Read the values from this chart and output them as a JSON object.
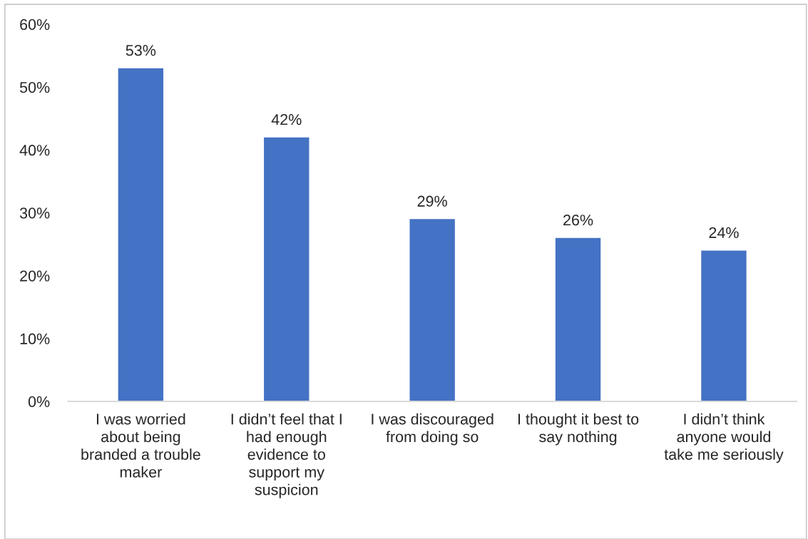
{
  "chart_data": {
    "type": "bar",
    "categories": [
      "I was worried\nabout being\nbranded a trouble\nmaker",
      "I didn’t feel that I\nhad enough\nevidence to\nsupport my\nsuspicion",
      "I was discouraged\nfrom doing so",
      "I thought it best to\nsay nothing",
      "I didn’t think\nanyone would\ntake me seriously"
    ],
    "values": [
      53,
      42,
      29,
      26,
      24
    ],
    "value_labels": [
      "53%",
      "42%",
      "29%",
      "26%",
      "24%"
    ],
    "color": "#4472c4",
    "ylim": [
      0,
      60
    ],
    "yticks": [
      {
        "value": 0,
        "label": "0%"
      },
      {
        "value": 10,
        "label": "10%"
      },
      {
        "value": 20,
        "label": "20%"
      },
      {
        "value": 30,
        "label": "30%"
      },
      {
        "value": 40,
        "label": "40%"
      },
      {
        "value": 50,
        "label": "50%"
      },
      {
        "value": 60,
        "label": "60%"
      }
    ],
    "grid": false,
    "legend": false
  }
}
